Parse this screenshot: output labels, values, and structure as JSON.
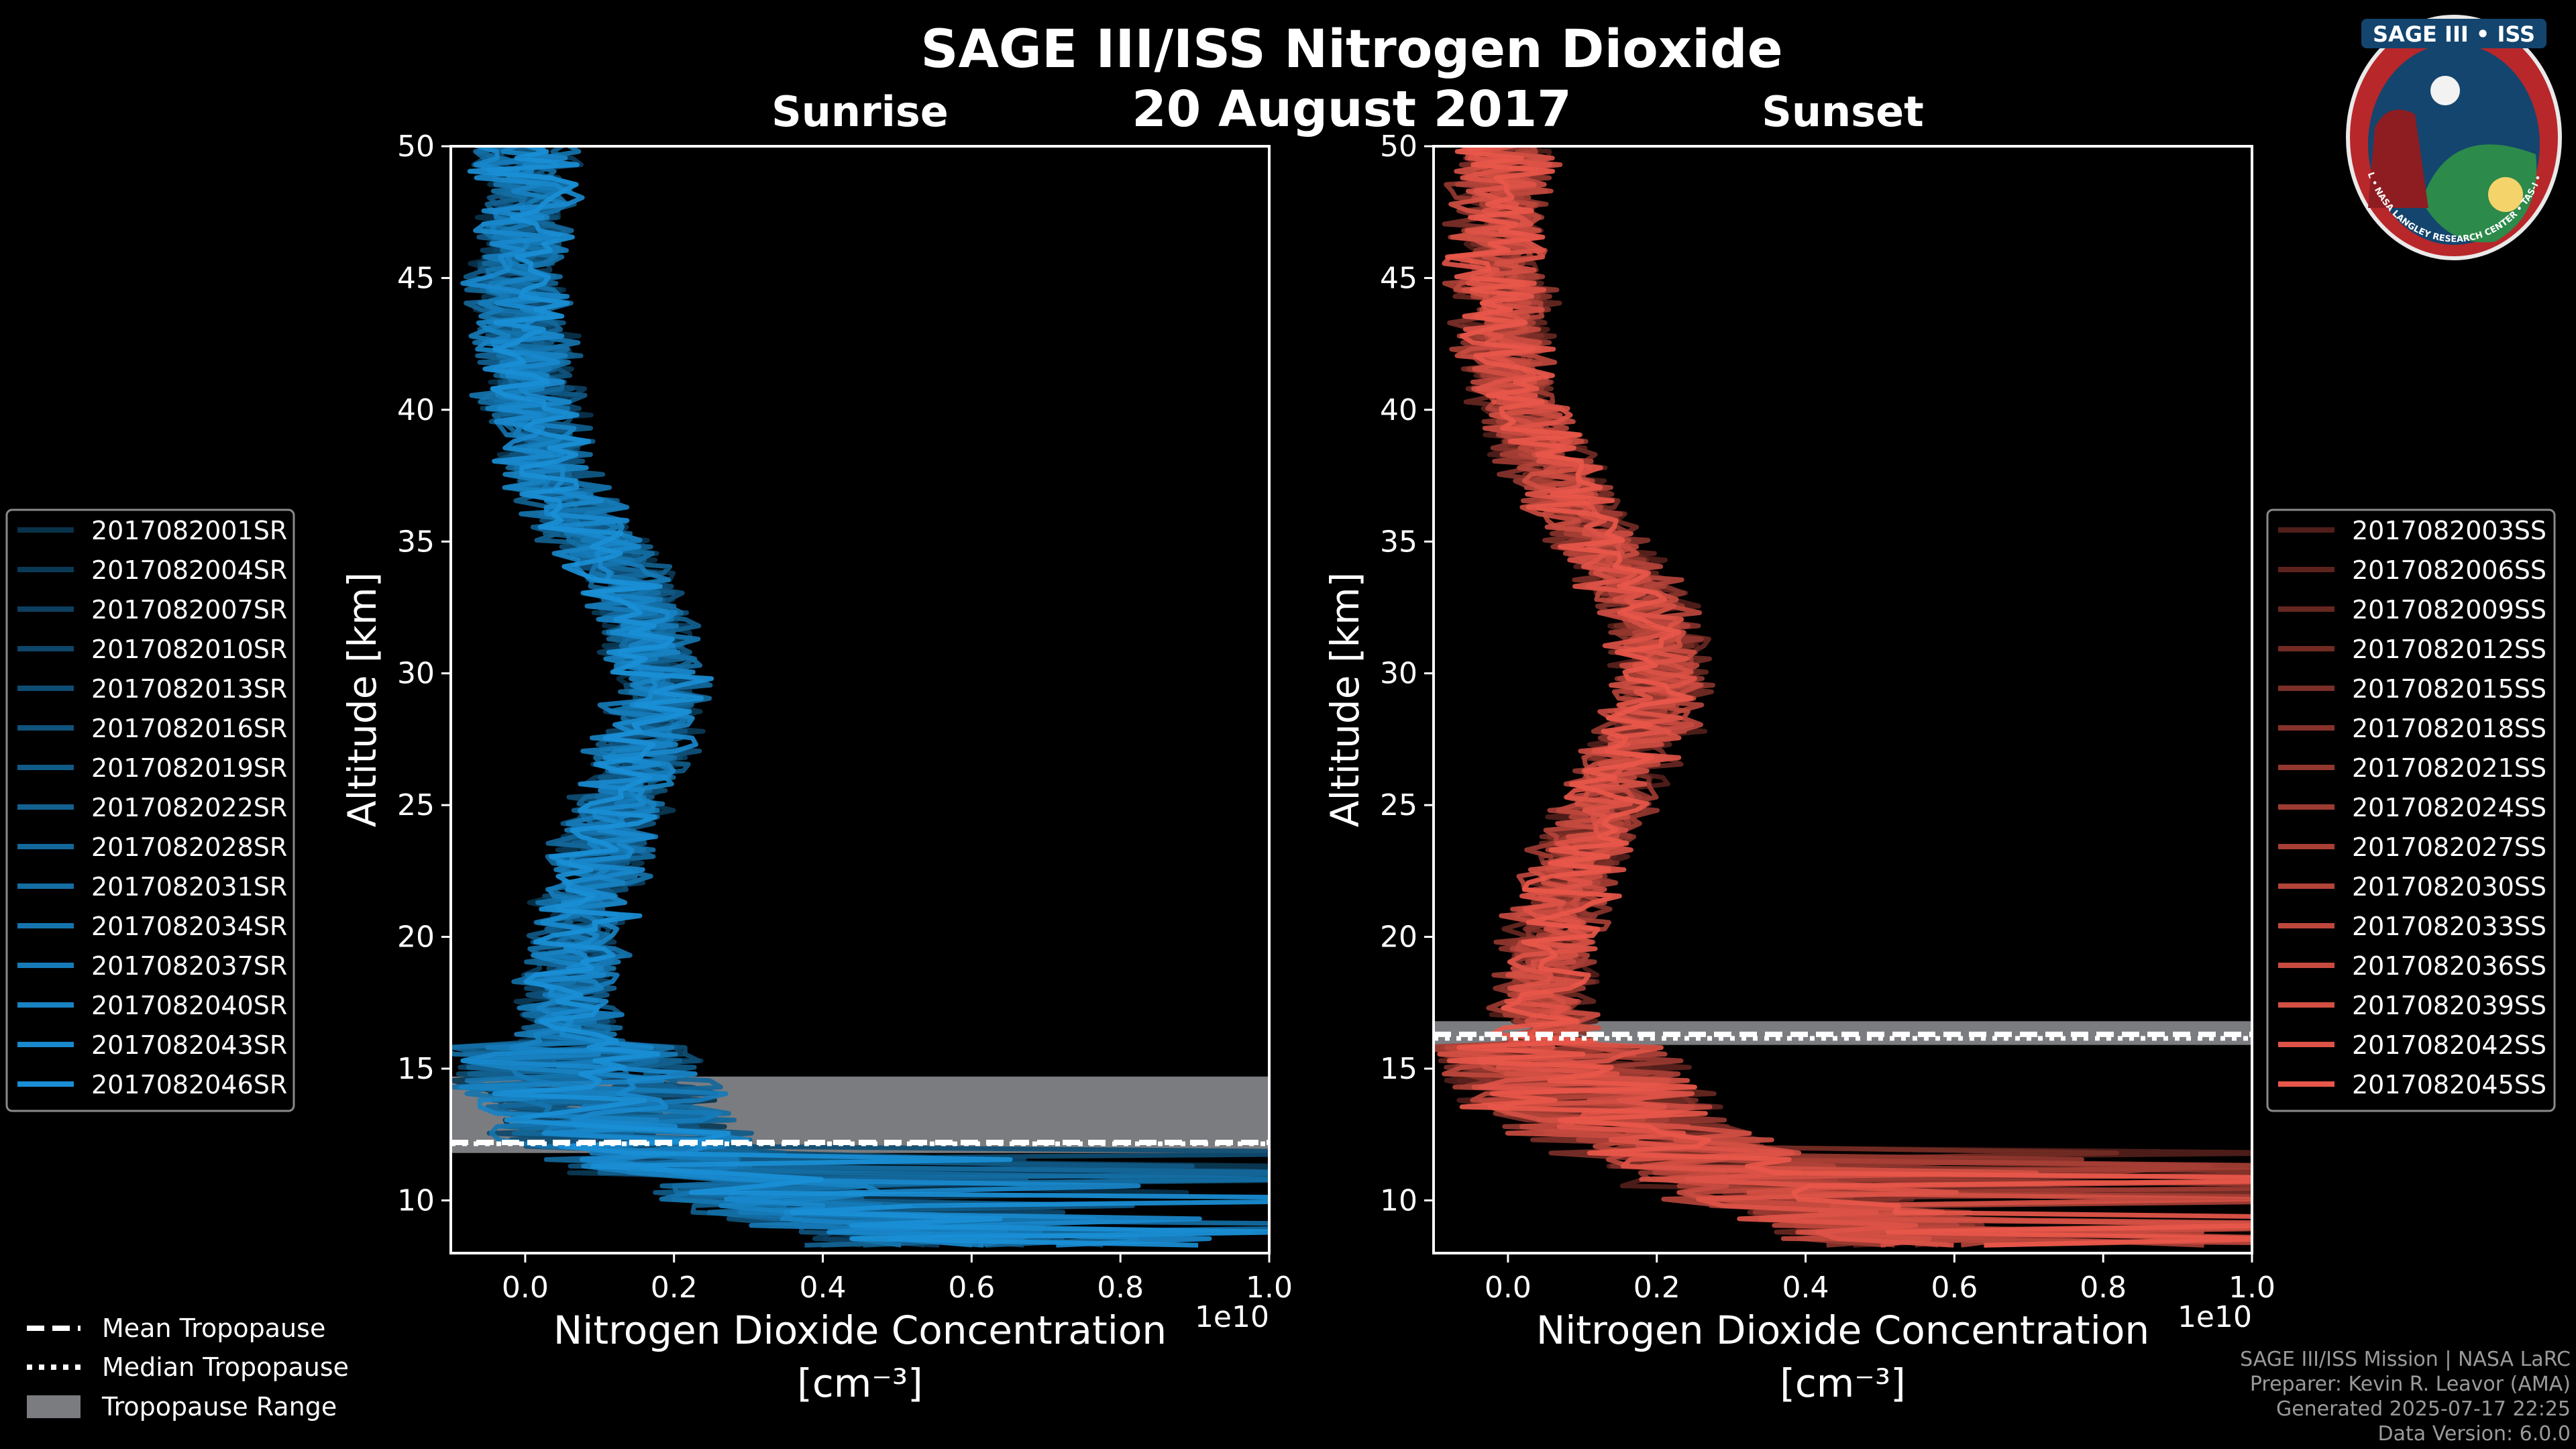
{
  "figure": {
    "title": "SAGE III/ISS Nitrogen Dioxide",
    "date": "20 August 2017",
    "footer": [
      "SAGE III/ISS Mission | NASA LaRC",
      "Preparer: Kevin R. Leavor (AMA)",
      "Generated 2025-07-17 22:25",
      "Data Version: 6.0.0"
    ],
    "badge": {
      "title": "SAGE III • ISS",
      "ring_text": "BALL • NASA LANGLEY RESEARCH CENTER • TAS-I • ESA"
    },
    "tropo_legend": [
      "Mean Tropopause",
      "Median Tropopause",
      "Tropopause Range"
    ],
    "colors": {
      "sunrise": "#1a8fd6",
      "sunset": "#e8574a",
      "range": "#7b7c80",
      "background": "#000000"
    }
  },
  "chart_data": [
    {
      "type": "line",
      "panel": "Sunrise",
      "title": "Sunrise",
      "xlabel": "Nitrogen Dioxide Concentration",
      "xunit": "[cm⁻³]",
      "x_exponent": "1e10",
      "ylabel": "Altitude [km]",
      "xlim": [
        -0.1,
        1.0
      ],
      "ylim": [
        8,
        50
      ],
      "x_ticks": [
        "0.0",
        "0.2",
        "0.4",
        "0.6",
        "0.8",
        "1.0"
      ],
      "x_tick_values": [
        0.0,
        0.2,
        0.4,
        0.6,
        0.8,
        1.0
      ],
      "y_ticks": [
        10,
        15,
        20,
        25,
        30,
        35,
        40,
        45,
        50
      ],
      "series_names": [
        "2017082001SR",
        "2017082004SR",
        "2017082007SR",
        "2017082010SR",
        "2017082013SR",
        "2017082016SR",
        "2017082019SR",
        "2017082022SR",
        "2017082028SR",
        "2017082031SR",
        "2017082034SR",
        "2017082037SR",
        "2017082040SR",
        "2017082043SR",
        "2017082046SR"
      ],
      "mean_profile": {
        "altitude": [
          8.5,
          10,
          12,
          14,
          15,
          16,
          18,
          20,
          22,
          24,
          26,
          28,
          30,
          32,
          34,
          36,
          38,
          40,
          42,
          45,
          48,
          50
        ],
        "concentration": [
          0.55,
          0.35,
          0.15,
          0.09,
          0.07,
          0.06,
          0.06,
          0.07,
          0.09,
          0.11,
          0.14,
          0.17,
          0.18,
          0.16,
          0.12,
          0.07,
          0.03,
          0.01,
          0.0,
          -0.01,
          0.0,
          0.0
        ]
      },
      "tropopause": {
        "mean": 12.2,
        "median": 12.2,
        "range": [
          11.8,
          14.7
        ]
      }
    },
    {
      "type": "line",
      "panel": "Sunset",
      "title": "Sunset",
      "xlabel": "Nitrogen Dioxide Concentration",
      "xunit": "[cm⁻³]",
      "x_exponent": "1e10",
      "ylabel": "Altitude [km]",
      "xlim": [
        -0.1,
        1.0
      ],
      "ylim": [
        8,
        50
      ],
      "x_ticks": [
        "0.0",
        "0.2",
        "0.4",
        "0.6",
        "0.8",
        "1.0"
      ],
      "x_tick_values": [
        0.0,
        0.2,
        0.4,
        0.6,
        0.8,
        1.0
      ],
      "y_ticks": [
        10,
        15,
        20,
        25,
        30,
        35,
        40,
        45,
        50
      ],
      "series_names": [
        "2017082003SS",
        "2017082006SS",
        "2017082009SS",
        "2017082012SS",
        "2017082015SS",
        "2017082018SS",
        "2017082021SS",
        "2017082024SS",
        "2017082027SS",
        "2017082030SS",
        "2017082033SS",
        "2017082036SS",
        "2017082039SS",
        "2017082042SS",
        "2017082045SS"
      ],
      "mean_profile": {
        "altitude": [
          8.5,
          10,
          12,
          14,
          16,
          18,
          20,
          22,
          24,
          26,
          28,
          30,
          32,
          34,
          36,
          38,
          40,
          42,
          45,
          48,
          50
        ],
        "concentration": [
          0.55,
          0.4,
          0.2,
          0.1,
          0.05,
          0.05,
          0.06,
          0.08,
          0.11,
          0.15,
          0.19,
          0.21,
          0.19,
          0.15,
          0.1,
          0.05,
          0.02,
          0.0,
          -0.01,
          -0.01,
          0.0
        ]
      },
      "tropopause": {
        "mean": 16.3,
        "median": 16.2,
        "range": [
          15.9,
          16.8
        ]
      }
    }
  ]
}
